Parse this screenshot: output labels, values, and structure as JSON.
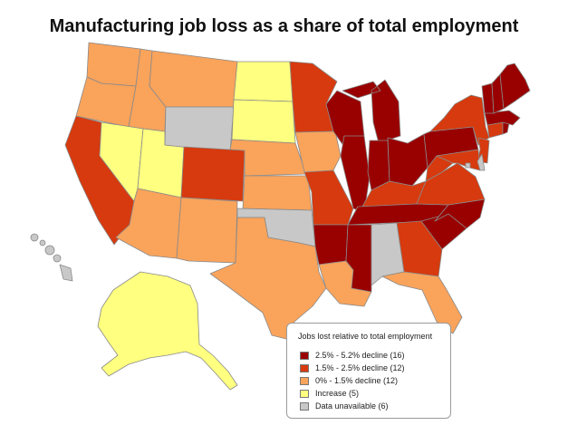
{
  "title": "Manufacturing job loss as a share of total employment",
  "legend": {
    "title": "Jobs lost relative to total employment",
    "items": [
      {
        "key": "cat1",
        "label": "2.5% - 5.2% decline  (16)",
        "color": "#990000"
      },
      {
        "key": "cat2",
        "label": "1.5% - 2.5% decline  (12)",
        "color": "#d63a0e"
      },
      {
        "key": "cat3",
        "label": "0% - 1.5% decline  (12)",
        "color": "#f9a35b"
      },
      {
        "key": "cat4",
        "label": "Increase (5)",
        "color": "#ffff80"
      },
      {
        "key": "cat5",
        "label": "Data unavailable  (6)",
        "color": "#c8c8c8"
      }
    ]
  },
  "states": [
    {
      "code": "WA",
      "category": "cat3"
    },
    {
      "code": "OR",
      "category": "cat3"
    },
    {
      "code": "CA",
      "category": "cat2"
    },
    {
      "code": "ID",
      "category": "cat3"
    },
    {
      "code": "NV",
      "category": "cat4"
    },
    {
      "code": "UT",
      "category": "cat4"
    },
    {
      "code": "AZ",
      "category": "cat3"
    },
    {
      "code": "MT",
      "category": "cat3"
    },
    {
      "code": "WY",
      "category": "cat5"
    },
    {
      "code": "CO",
      "category": "cat2"
    },
    {
      "code": "NM",
      "category": "cat3"
    },
    {
      "code": "ND",
      "category": "cat4"
    },
    {
      "code": "SD",
      "category": "cat4"
    },
    {
      "code": "NE",
      "category": "cat3"
    },
    {
      "code": "KS",
      "category": "cat3"
    },
    {
      "code": "OK",
      "category": "cat5"
    },
    {
      "code": "TX",
      "category": "cat3"
    },
    {
      "code": "MN",
      "category": "cat2"
    },
    {
      "code": "IA",
      "category": "cat3"
    },
    {
      "code": "MO",
      "category": "cat2"
    },
    {
      "code": "AR",
      "category": "cat1"
    },
    {
      "code": "LA",
      "category": "cat3"
    },
    {
      "code": "WI",
      "category": "cat1"
    },
    {
      "code": "IL",
      "category": "cat1"
    },
    {
      "code": "MI",
      "category": "cat1"
    },
    {
      "code": "IN",
      "category": "cat1"
    },
    {
      "code": "OH",
      "category": "cat1"
    },
    {
      "code": "KY",
      "category": "cat2"
    },
    {
      "code": "TN",
      "category": "cat1"
    },
    {
      "code": "MS",
      "category": "cat1"
    },
    {
      "code": "AL",
      "category": "cat5"
    },
    {
      "code": "GA",
      "category": "cat2"
    },
    {
      "code": "FL",
      "category": "cat3"
    },
    {
      "code": "SC",
      "category": "cat1"
    },
    {
      "code": "NC",
      "category": "cat1"
    },
    {
      "code": "VA",
      "category": "cat2"
    },
    {
      "code": "WV",
      "category": "cat2"
    },
    {
      "code": "PA",
      "category": "cat1"
    },
    {
      "code": "NY",
      "category": "cat2"
    },
    {
      "code": "NJ",
      "category": "cat2"
    },
    {
      "code": "DE",
      "category": "cat5"
    },
    {
      "code": "MD",
      "category": "cat2"
    },
    {
      "code": "DC",
      "category": "cat5"
    },
    {
      "code": "CT",
      "category": "cat2"
    },
    {
      "code": "RI",
      "category": "cat1"
    },
    {
      "code": "MA",
      "category": "cat1"
    },
    {
      "code": "VT",
      "category": "cat1"
    },
    {
      "code": "NH",
      "category": "cat1"
    },
    {
      "code": "ME",
      "category": "cat1"
    },
    {
      "code": "AK",
      "category": "cat4"
    },
    {
      "code": "HI",
      "category": "cat5"
    }
  ]
}
